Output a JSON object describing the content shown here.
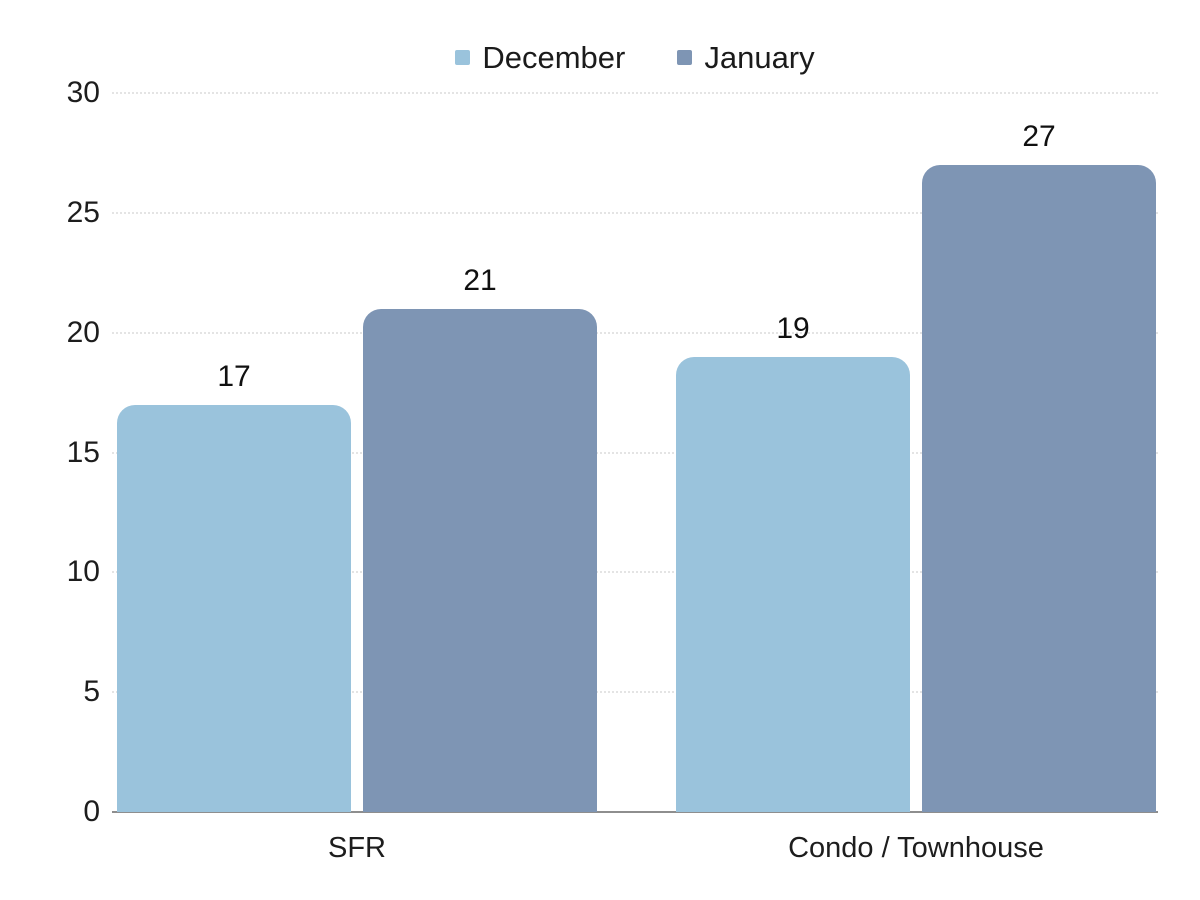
{
  "chart_data": {
    "type": "bar",
    "title": "",
    "xlabel": "",
    "ylabel": "",
    "categories": [
      "SFR",
      "Condo / Townhouse"
    ],
    "series": [
      {
        "name": "December",
        "color": "#9ac3dc",
        "values": [
          17,
          19
        ]
      },
      {
        "name": "January",
        "color": "#7e95b4",
        "values": [
          21,
          27
        ]
      }
    ],
    "ylim": [
      0,
      30
    ],
    "yticks": [
      0,
      5,
      10,
      15,
      20,
      25,
      30
    ],
    "grid": true,
    "legend_position": "top",
    "data_labels_shown": true
  },
  "colors": {
    "background": "#ffffff",
    "gridline": "#e4e4e4",
    "zero_line": "#8e8e8e",
    "text": "#1c1c1c"
  }
}
